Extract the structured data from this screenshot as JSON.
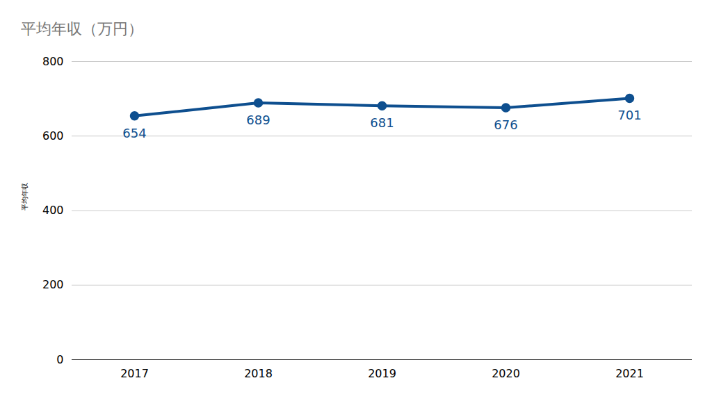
{
  "chart_data": {
    "type": "line",
    "title": "平均年収（万円）",
    "y_label": "平均年収",
    "categories": [
      "2017",
      "2018",
      "2019",
      "2020",
      "2021"
    ],
    "values": [
      654,
      689,
      681,
      676,
      701
    ],
    "color": "#0e4f8f",
    "marker": "circle",
    "ylim": [
      0,
      800
    ],
    "yticks": [
      0,
      200,
      400,
      600,
      800
    ],
    "grid": true,
    "data_labels": true
  }
}
